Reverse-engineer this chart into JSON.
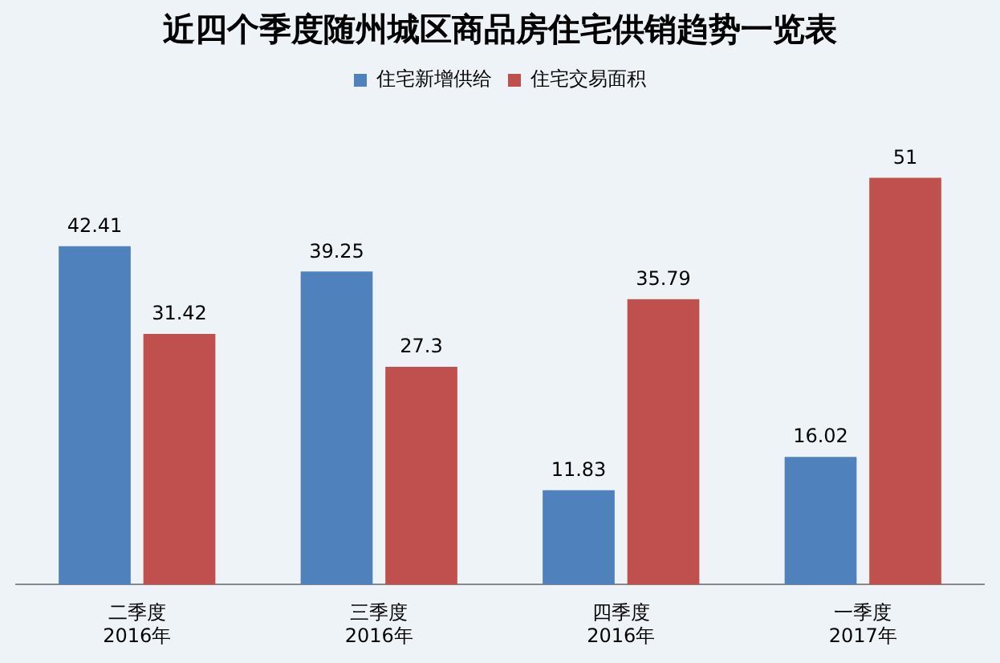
{
  "chart_data": {
    "type": "bar",
    "title": "近四个季度随州城区商品房住宅供销趋势一览表",
    "categories": [
      "二季度\n2016年",
      "三季度\n2016年",
      "四季度\n2016年",
      "一季度\n2017年"
    ],
    "series": [
      {
        "name": "住宅新增供给",
        "color": "#4f81bd",
        "values": [
          42.41,
          39.25,
          11.83,
          16.02
        ]
      },
      {
        "name": "住宅交易面积",
        "color": "#c0504d",
        "values": [
          31.42,
          27.3,
          35.79,
          51
        ]
      }
    ],
    "data_labels": true,
    "legend": "top"
  }
}
